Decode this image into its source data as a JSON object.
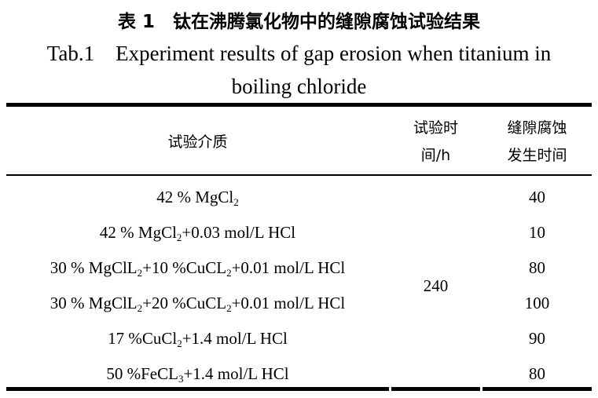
{
  "title_cn": "表 1　钛在沸腾氯化物中的缝隙腐蚀试验结果",
  "title_en_line1": "Tab.1    Experiment results of gap erosion when titanium in",
  "title_en_line2": "boiling chloride",
  "headers": {
    "medium": "试验介质",
    "test_time": [
      "试验时",
      "间/h"
    ],
    "crevice_time": [
      "缝隙腐蚀",
      "发生时间"
    ]
  },
  "test_time_value": "240",
  "rows": [
    {
      "medium": [
        {
          "t": "42 % MgCl"
        },
        {
          "s": "2"
        }
      ],
      "crevice_time": "40"
    },
    {
      "medium": [
        {
          "t": "42 % MgCl"
        },
        {
          "s": "2"
        },
        {
          "t": "+0.03 mol/L HCl"
        }
      ],
      "crevice_time": "10"
    },
    {
      "medium": [
        {
          "t": "30 % MgClL"
        },
        {
          "s": "2"
        },
        {
          "t": "+10 %CuCL"
        },
        {
          "s": "2"
        },
        {
          "t": "+0.01 mol/L HCl"
        }
      ],
      "crevice_time": "80"
    },
    {
      "medium": [
        {
          "t": "30 % MgClL"
        },
        {
          "s": "2"
        },
        {
          "t": "+20 %CuCL"
        },
        {
          "s": "2"
        },
        {
          "t": "+0.01 mol/L HCl"
        }
      ],
      "crevice_time": "100"
    },
    {
      "medium": [
        {
          "t": "17 %CuCl"
        },
        {
          "s": "2"
        },
        {
          "t": "+1.4 mol/L HCl"
        }
      ],
      "crevice_time": "90"
    },
    {
      "medium": [
        {
          "t": "50 %FeCL"
        },
        {
          "s": "3"
        },
        {
          "t": "+1.4 mol/L HCl"
        }
      ],
      "crevice_time": "80"
    }
  ]
}
